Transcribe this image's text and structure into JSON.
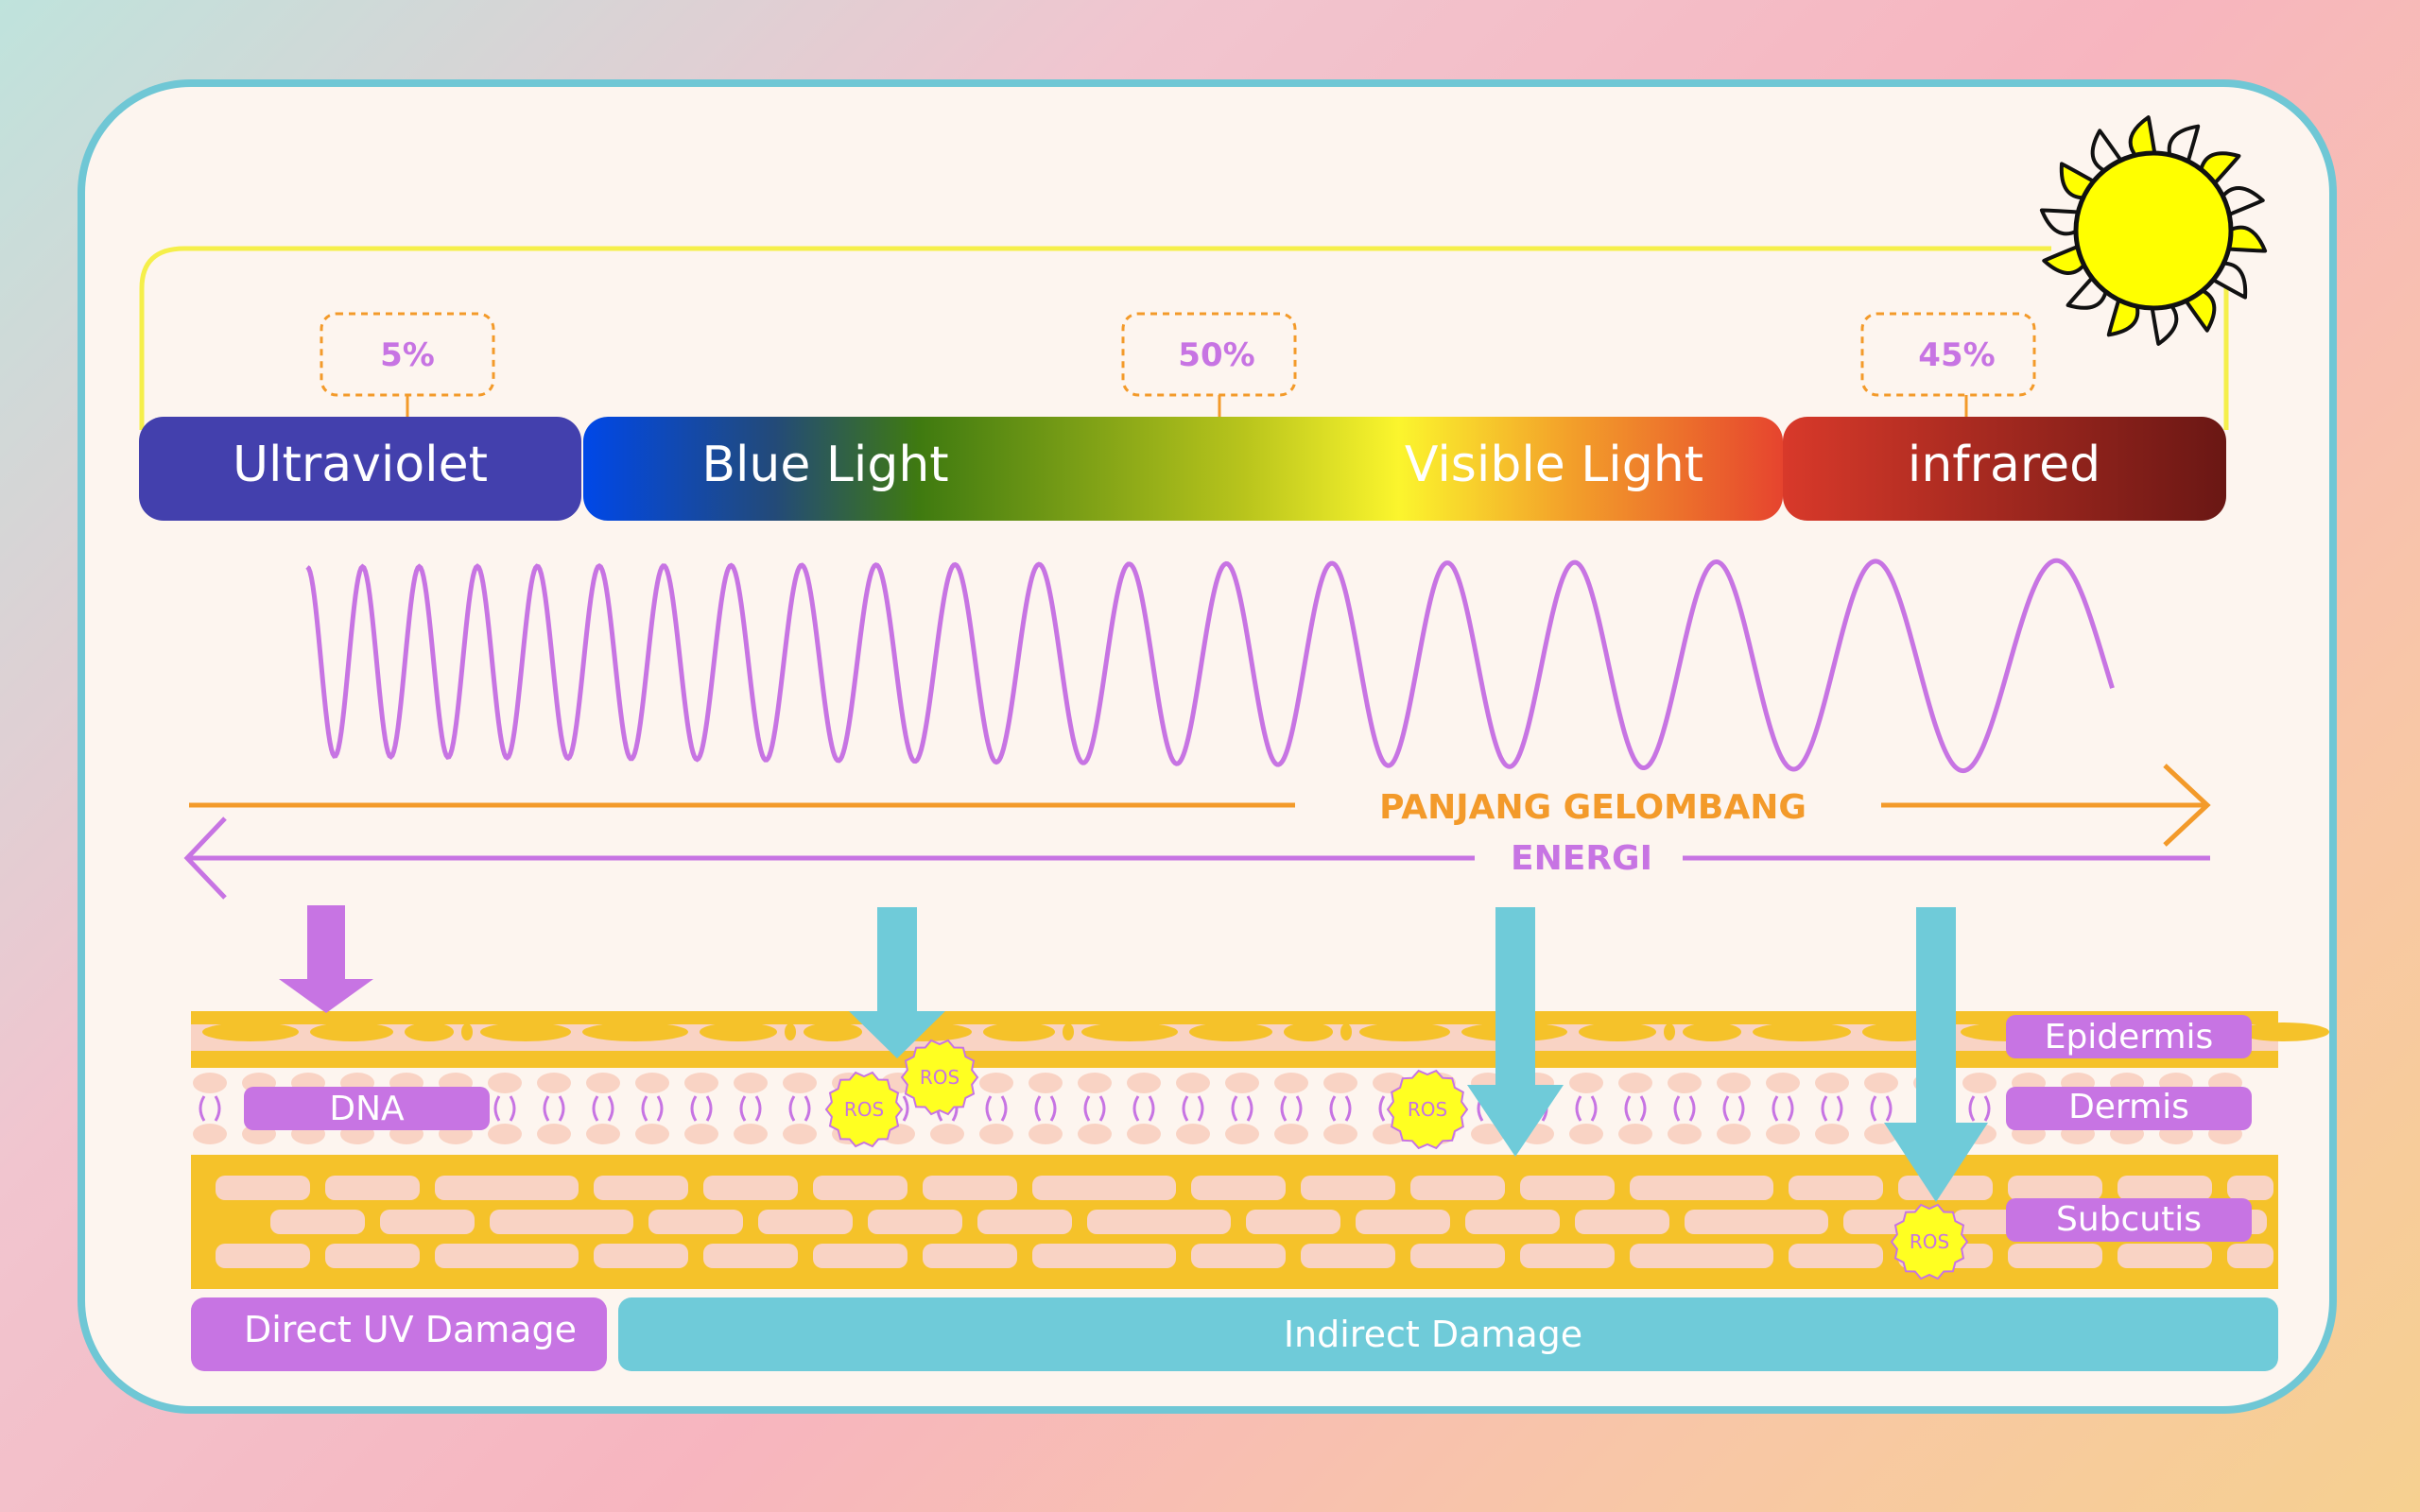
{
  "colors": {
    "card_border": "#6fc7d5",
    "card_bg": "#fdf5ef",
    "purple": "#c774e3",
    "orange": "#f39a2a",
    "teal": "#6fcbd9",
    "yellow": "#f5c22a",
    "pink": "#f9d3c4",
    "sun_yellow": "#ffff00",
    "ultraviolet": "#4340ad",
    "ros_yellow": "#ffff21"
  },
  "sun": {
    "icon": "sun-icon"
  },
  "spectrum": {
    "percentages": [
      "5%",
      "50%",
      "45%"
    ],
    "bands": [
      "Ultraviolet",
      "Blue Light",
      "Visible Light",
      "infrared"
    ]
  },
  "axes": {
    "wavelength_label": "PANJANG GELOMBANG",
    "energy_label": "ENERGI"
  },
  "skin": {
    "layers": [
      "Epidermis",
      "Dermis",
      "Subcutis"
    ],
    "dna_label": "DNA",
    "ros_label": "ROS"
  },
  "damage": {
    "direct": "Direct UV Damage",
    "indirect": "Indirect Damage"
  }
}
